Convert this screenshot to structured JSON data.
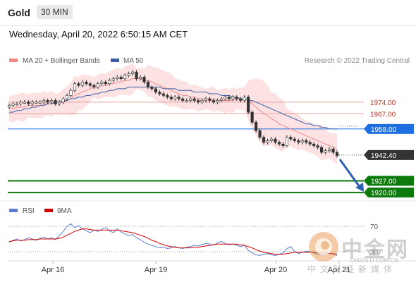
{
  "header": {
    "symbol": "Gold",
    "timeframe": "30 MIN",
    "datetime": "Wednesday, April 20, 2022 6:50:15 AM CET"
  },
  "legend": {
    "ma20_label": "MA 20 + Bollinger Bands",
    "ma50_label": "MA 50",
    "copyright": "Research © 2022 Trading Central",
    "ma20_color": "#f08a8a",
    "ma50_color": "#3b5fa8"
  },
  "rsi_legend": {
    "rsi_label": "RSI",
    "ma9_label": "9MA",
    "rsi_color": "#5b7fd0",
    "ma9_color": "#d40000"
  },
  "watermark": {
    "name": "中金网",
    "url": "CNGOLD.COM.CN",
    "subtitle": "中文财经新媒体"
  },
  "chart_data": {
    "type": "line",
    "x_tick_labels": [
      "Apr 16",
      "Apr 19",
      "Apr 20",
      "Apr 21"
    ],
    "y_range": [
      1915,
      1995
    ],
    "last_price": 1942.4,
    "levels": [
      {
        "label": "1974.00",
        "value": 1974.0,
        "kind": "resistance",
        "color": "#e8a0a0"
      },
      {
        "label": "1967.00",
        "value": 1967.0,
        "kind": "resistance",
        "color": "#e8a0a0"
      },
      {
        "label": "1958.00",
        "value": 1958.0,
        "kind": "pivot",
        "color": "#1f6fe0"
      },
      {
        "label": "1927.00",
        "value": 1927.0,
        "kind": "support",
        "color": "#0c7a0c"
      },
      {
        "label": "1920.00",
        "value": 1920.0,
        "kind": "support",
        "color": "#0c7a0c"
      }
    ],
    "last_price_label": "1942.40",
    "closes": [
      1972,
      1973,
      1973,
      1974,
      1974,
      1973,
      1974,
      1974,
      1974,
      1975,
      1974,
      1975,
      1973,
      1974,
      1976,
      1978,
      1981,
      1985,
      1984,
      1986,
      1985,
      1984,
      1983,
      1985,
      1986,
      1985,
      1987,
      1988,
      1989,
      1988,
      1990,
      1991,
      1992,
      1988,
      1989,
      1986,
      1983,
      1982,
      1980,
      1979,
      1978,
      1977,
      1976,
      1977,
      1976,
      1975,
      1975,
      1976,
      1975,
      1974,
      1975,
      1976,
      1975,
      1974,
      1975,
      1976,
      1977,
      1976,
      1977,
      1976,
      1975,
      1977,
      1968,
      1962,
      1957,
      1953,
      1950,
      1951,
      1952,
      1950,
      1949,
      1948,
      1953,
      1952,
      1951,
      1950,
      1951,
      1950,
      1949,
      1948,
      1947,
      1944,
      1945,
      1946,
      1944,
      1942
    ],
    "ma20": [
      1970,
      1970,
      1971,
      1971,
      1971,
      1972,
      1972,
      1972,
      1972,
      1973,
      1973,
      1973,
      1973,
      1973,
      1974,
      1975,
      1976,
      1978,
      1979,
      1980,
      1981,
      1982,
      1983,
      1983,
      1984,
      1984,
      1985,
      1985,
      1986,
      1986,
      1987,
      1987,
      1988,
      1988,
      1988,
      1987,
      1987,
      1986,
      1985,
      1984,
      1983,
      1982,
      1981,
      1980,
      1979,
      1978,
      1978,
      1977,
      1977,
      1976,
      1976,
      1976,
      1976,
      1976,
      1975,
      1975,
      1975,
      1975,
      1975,
      1976,
      1976,
      1976,
      1975,
      1973,
      1971,
      1969,
      1967,
      1966,
      1964,
      1963,
      1961,
      1960,
      1959,
      1958,
      1957,
      1956,
      1955,
      1954,
      1953,
      1952,
      1951,
      1950,
      1949,
      1948,
      1947,
      1946
    ],
    "ma50": [
      1968,
      1968,
      1969,
      1969,
      1970,
      1970,
      1971,
      1971,
      1972,
      1972,
      1973,
      1973,
      1974,
      1974,
      1975,
      1975,
      1976,
      1976,
      1977,
      1977,
      1978,
      1978,
      1979,
      1979,
      1980,
      1980,
      1981,
      1981,
      1982,
      1982,
      1982,
      1983,
      1983,
      1983,
      1983,
      1983,
      1983,
      1983,
      1983,
      1983,
      1982,
      1982,
      1982,
      1982,
      1981,
      1981,
      1981,
      1981,
      1980,
      1980,
      1980,
      1980,
      1979,
      1979,
      1979,
      1978,
      1978,
      1978,
      1977,
      1977,
      1976,
      1976,
      1975,
      1975,
      1974,
      1973,
      1972,
      1971,
      1970,
      1969,
      1968,
      1967,
      1966,
      1965,
      1964,
      1963,
      1962,
      1961,
      1961,
      1960,
      1960,
      1959,
      1959,
      1958,
      1958,
      1958
    ],
    "rsi_levels": [
      {
        "label": "70",
        "value": 70
      },
      {
        "label": "30",
        "value": 30
      }
    ],
    "rsi": [
      45,
      48,
      50,
      47,
      49,
      52,
      50,
      48,
      51,
      53,
      50,
      52,
      49,
      55,
      62,
      70,
      74,
      68,
      71,
      66,
      63,
      60,
      64,
      62,
      65,
      68,
      63,
      60,
      66,
      61,
      58,
      55,
      57,
      52,
      49,
      45,
      42,
      40,
      38,
      36,
      37,
      35,
      36,
      38,
      36,
      35,
      37,
      38,
      40,
      39,
      41,
      43,
      42,
      40,
      44,
      46,
      43,
      41,
      42,
      40,
      38,
      40,
      32,
      28,
      25,
      24,
      26,
      27,
      25,
      24,
      26,
      28,
      35,
      38,
      30,
      27,
      29,
      31,
      30,
      28,
      26,
      25,
      27,
      28,
      26,
      24
    ],
    "rsi_ma9": [
      46,
      47,
      48,
      48,
      48,
      49,
      49,
      49,
      50,
      50,
      50,
      50,
      50,
      51,
      53,
      56,
      59,
      62,
      64,
      66,
      66,
      65,
      64,
      64,
      64,
      64,
      64,
      64,
      64,
      63,
      62,
      61,
      60,
      58,
      56,
      54,
      51,
      48,
      46,
      43,
      41,
      39,
      38,
      37,
      36,
      36,
      36,
      36,
      37,
      37,
      38,
      39,
      40,
      41,
      42,
      42,
      42,
      42,
      42,
      42,
      41,
      40,
      38,
      36,
      33,
      31,
      29,
      28,
      27,
      26,
      26,
      26,
      27,
      28,
      29,
      29,
      29,
      29,
      29,
      29,
      28,
      28,
      28,
      27,
      27,
      26
    ]
  }
}
